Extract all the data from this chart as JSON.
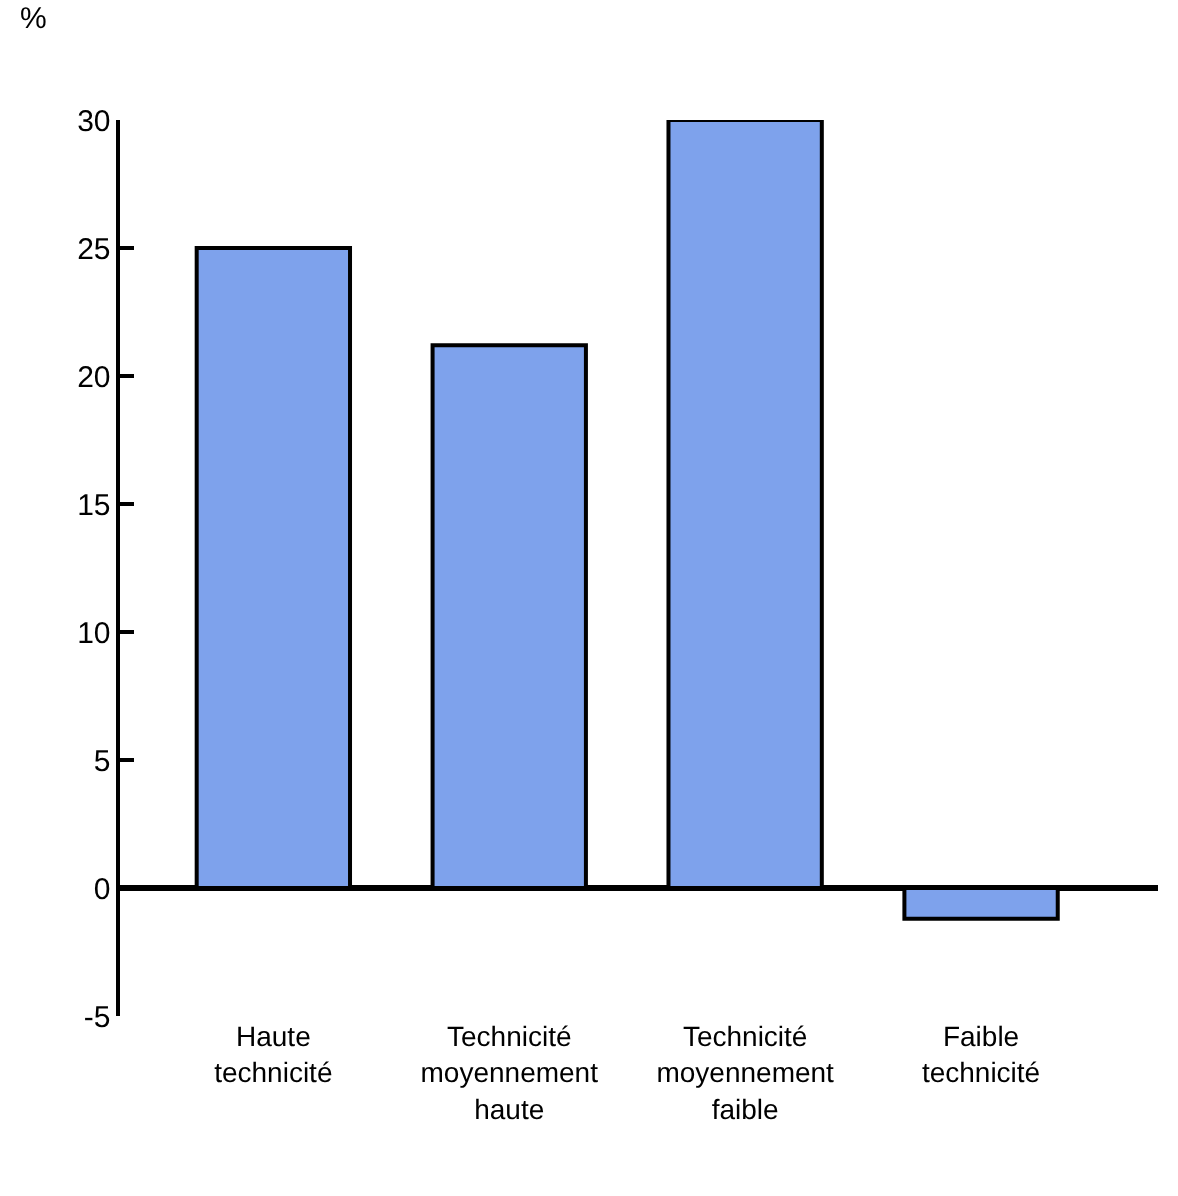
{
  "chart_data": {
    "type": "bar",
    "ylabel": "%",
    "categories": [
      "Haute\ntechnicité",
      "Technicité\nmoyennement\nhaute",
      "Technicité\nmoyennement\nfaible",
      "Faible\ntechnicité"
    ],
    "values": [
      25,
      21.2,
      30,
      -1.2
    ],
    "color": "#7ea2ec",
    "ylim": [
      -5,
      30
    ],
    "yticks": [
      -5,
      0,
      5,
      10,
      15,
      20,
      25,
      30
    ]
  }
}
